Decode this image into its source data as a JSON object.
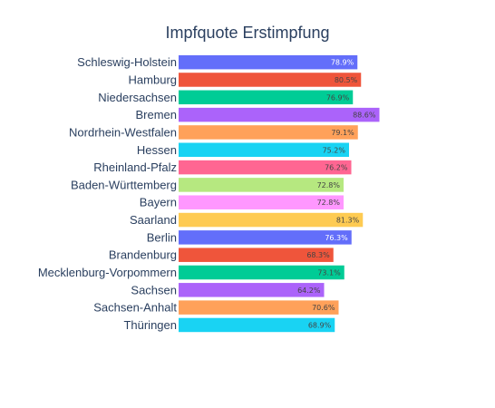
{
  "chart_data": {
    "type": "bar",
    "orientation": "horizontal",
    "title": "Impfquote Erstimpfung",
    "xlabel": "",
    "ylabel": "",
    "xlim": [
      0,
      100
    ],
    "grid": false,
    "legend": "none",
    "categories": [
      "Schleswig-Holstein",
      "Hamburg",
      "Niedersachsen",
      "Bremen",
      "Nordrhein-Westfalen",
      "Hessen",
      "Rheinland-Pfalz",
      "Baden-Württemberg",
      "Bayern",
      "Saarland",
      "Berlin",
      "Brandenburg",
      "Mecklenburg-Vorpommern",
      "Sachsen",
      "Sachsen-Anhalt",
      "Thüringen"
    ],
    "values": [
      78.9,
      80.5,
      76.9,
      88.6,
      79.1,
      75.2,
      76.2,
      72.8,
      72.8,
      81.3,
      76.3,
      68.3,
      73.1,
      64.2,
      70.6,
      68.9
    ],
    "labels": [
      "78.9%",
      "80.5%",
      "76.9%",
      "88.6%",
      "79.1%",
      "75.2%",
      "76.2%",
      "72.8%",
      "72.8%",
      "81.3%",
      "76.3%",
      "68.3%",
      "73.1%",
      "64.2%",
      "70.6%",
      "68.9%"
    ],
    "colors": [
      "#636efa",
      "#ef553b",
      "#00cc96",
      "#ab63fa",
      "#ffa15a",
      "#19d3f3",
      "#ff6692",
      "#b6e880",
      "#ff97ff",
      "#fecb52",
      "#636efa",
      "#ef553b",
      "#00cc96",
      "#ab63fa",
      "#ffa15a",
      "#19d3f3"
    ],
    "label_colors": [
      "#ffffff",
      "#444444",
      "#444444",
      "#444444",
      "#444444",
      "#444444",
      "#444444",
      "#444444",
      "#444444",
      "#444444",
      "#ffffff",
      "#444444",
      "#444444",
      "#444444",
      "#444444",
      "#444444"
    ]
  }
}
